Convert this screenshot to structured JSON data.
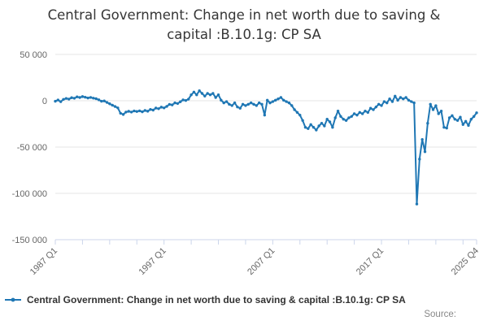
{
  "header": {
    "title": "Central Government: Change in net worth due to saving & capital :B.10.1g: CP SA"
  },
  "legend": {
    "label": "Central Government: Change in net worth due to saving & capital :B.10.1g: CP SA",
    "marker": "line-with-dot-icon"
  },
  "footer": {
    "source_label": "Source:"
  },
  "colors": {
    "series_line": "#1f77b4",
    "gridline": "#e6e6e6",
    "axis_line": "#ccd6eb",
    "axis_text": "#666666",
    "title_text": "#363636",
    "legend_text": "#333333",
    "source_text": "#888888",
    "background": "#ffffff"
  },
  "chart_data": {
    "type": "line",
    "title": "Central Government: Change in net worth due to saving & capital :B.10.1g: CP SA",
    "series_name": "Central Government: Change in net worth due to saving & capital :B.10.1g: CP SA",
    "x_start": "1987 Q1",
    "x_end": "2025 Q4",
    "x_frequency": "quarterly",
    "xlabel": "",
    "ylabel": "",
    "ylim": [
      -150000,
      50000
    ],
    "grid": "horizontal",
    "legend_position": "bottom-left",
    "markers": true,
    "y_ticks": [
      {
        "value": 50000,
        "label": "50 000"
      },
      {
        "value": 0,
        "label": "0"
      },
      {
        "value": -50000,
        "label": "-50 000"
      },
      {
        "value": -100000,
        "label": "-100 000"
      },
      {
        "value": -150000,
        "label": "-150 000"
      }
    ],
    "x_minor_tick_every_quarters": 10,
    "x_tick_labels": [
      {
        "q": 0,
        "label": "1987 Q1"
      },
      {
        "q": 40,
        "label": "1997 Q1"
      },
      {
        "q": 80,
        "label": "2007 Q1"
      },
      {
        "q": 120,
        "label": "2017 Q1"
      },
      {
        "q": 155,
        "label": "2025 Q4"
      }
    ],
    "values": [
      -500,
      800,
      -1000,
      1500,
      2500,
      1800,
      3300,
      2700,
      4200,
      3500,
      4500,
      3800,
      3000,
      3600,
      2800,
      2200,
      1000,
      -500,
      -200,
      -1800,
      -3300,
      -4800,
      -6200,
      -7700,
      -13500,
      -14800,
      -12200,
      -11400,
      -12200,
      -11000,
      -11600,
      -10900,
      -11900,
      -10500,
      -11300,
      -9400,
      -10100,
      -7900,
      -8600,
      -6900,
      -7700,
      -6100,
      -3900,
      -4500,
      -2300,
      -3000,
      -1100,
      900,
      300,
      1700,
      6400,
      9400,
      6400,
      10800,
      7900,
      5000,
      7900,
      6400,
      7900,
      3500,
      6400,
      600,
      -2300,
      -900,
      -3800,
      -5200,
      -2300,
      -6700,
      -8100,
      -3800,
      -5200,
      -3800,
      -2300,
      -3800,
      -5200,
      -2300,
      -3800,
      -15500,
      600,
      -2300,
      -900,
      600,
      2000,
      3500,
      600,
      -900,
      -2300,
      -5200,
      -9600,
      -12600,
      -15500,
      -21300,
      -28700,
      -30100,
      -25700,
      -28700,
      -31600,
      -27200,
      -24300,
      -27200,
      -19900,
      -22800,
      -28700,
      -18400,
      -11100,
      -16900,
      -19900,
      -21300,
      -18400,
      -16900,
      -14000,
      -15500,
      -12600,
      -14000,
      -11100,
      -12600,
      -8100,
      -9600,
      -6700,
      -3800,
      -5200,
      -900,
      -2300,
      2000,
      -900,
      5000,
      600,
      3500,
      2000,
      3500,
      600,
      -900,
      -2300,
      -111500,
      -63000,
      -41800,
      -55000,
      -24300,
      -3800,
      -9600,
      -5300,
      -14000,
      -11100,
      -28700,
      -29500,
      -18400,
      -16100,
      -19900,
      -21300,
      -17700,
      -25700,
      -22200,
      -26600,
      -19900,
      -17000,
      -13000
    ]
  }
}
